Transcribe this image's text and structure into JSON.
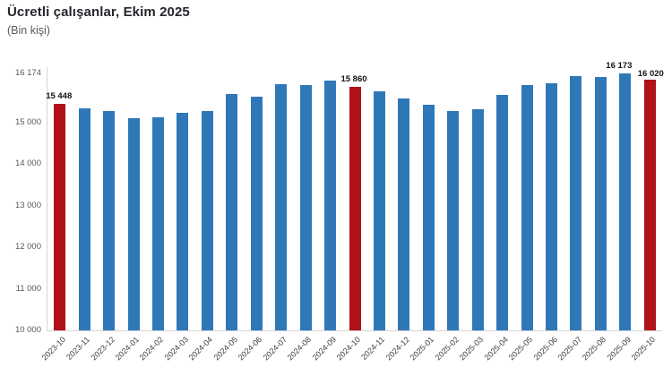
{
  "header": {
    "title": "Ücretli çalışanlar, Ekim 2025",
    "subtitle": "(Bin kişi)"
  },
  "chart_data": {
    "type": "bar",
    "title": "Ücretli çalışanlar, Ekim 2025",
    "subtitle": "(Bin kişi)",
    "ylabel": "Bin kişi",
    "xlabel": "",
    "grid": false,
    "legend": false,
    "ylim": [
      10000,
      16174
    ],
    "categories": [
      "2023-10",
      "2023-11",
      "2023-12",
      "2024-01",
      "2024-02",
      "2024-03",
      "2024-04",
      "2024-05",
      "2024-06",
      "2024-07",
      "2024-08",
      "2024-09",
      "2024-10",
      "2024-11",
      "2024-12",
      "2025-01",
      "2025-02",
      "2025-03",
      "2025-04",
      "2025-05",
      "2025-06",
      "2025-07",
      "2025-08",
      "2025-09",
      "2025-10"
    ],
    "values": [
      15448,
      15330,
      15280,
      15100,
      15130,
      15220,
      15280,
      15690,
      15610,
      15920,
      15905,
      16000,
      15860,
      15740,
      15575,
      15430,
      15280,
      15320,
      15655,
      15900,
      15940,
      16110,
      16080,
      16173,
      16020
    ],
    "highlight_indices": [
      0,
      12,
      24
    ],
    "data_labels": {
      "0": "15 448",
      "12": "15 860",
      "23": "16 173",
      "24": "16 020"
    },
    "colors": {
      "bar": "#2F78B8",
      "highlight": "#B11217",
      "axis": "#d6d6d6"
    },
    "y_ticks": [
      {
        "value": 16174,
        "label": "16 174"
      },
      {
        "value": 15000,
        "label": "15 000"
      },
      {
        "value": 14000,
        "label": "14 000"
      },
      {
        "value": 13000,
        "label": "13 000"
      },
      {
        "value": 12000,
        "label": "12 000"
      },
      {
        "value": 11000,
        "label": "11 000"
      },
      {
        "value": 10000,
        "label": "10 000"
      }
    ]
  }
}
